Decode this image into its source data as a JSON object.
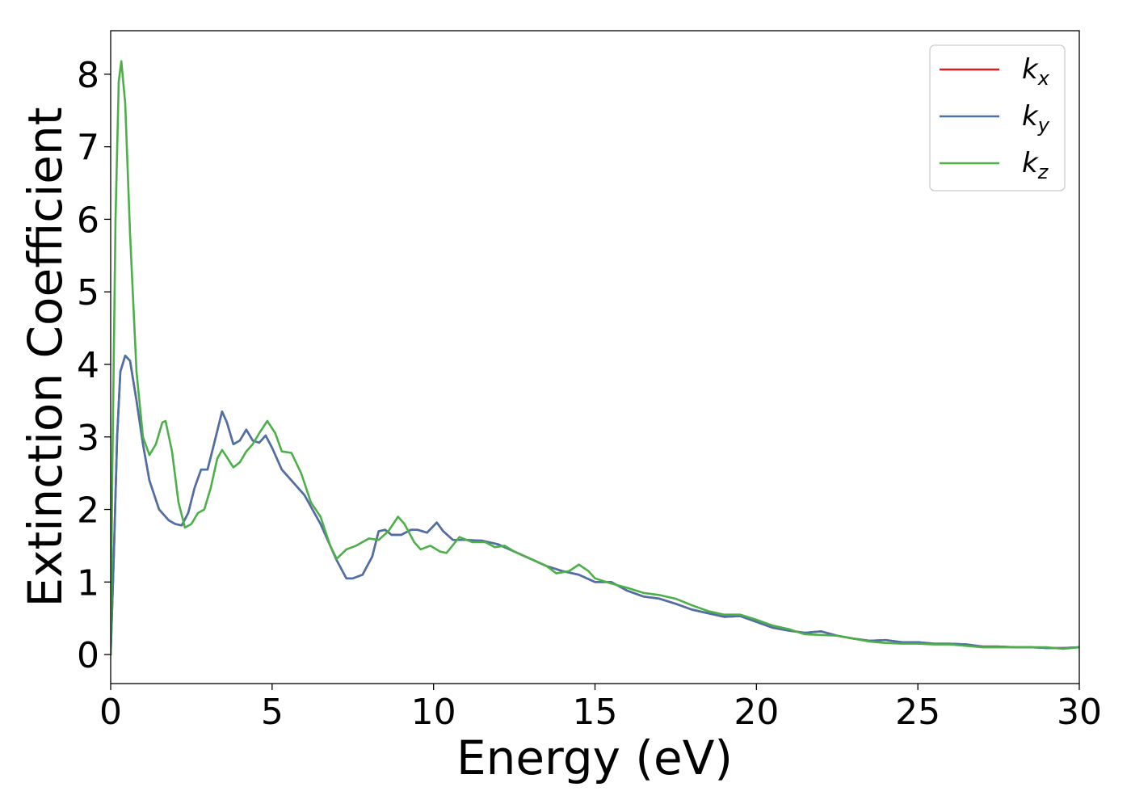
{
  "chart_data": {
    "type": "line",
    "xlabel": "Energy (eV)",
    "ylabel": "Extinction Coefficient",
    "xlim": [
      0,
      30
    ],
    "ylim": [
      -0.4,
      8.6
    ],
    "xticks": [
      0,
      5,
      10,
      15,
      20,
      25,
      30
    ],
    "yticks": [
      0,
      1,
      2,
      3,
      4,
      5,
      6,
      7,
      8
    ],
    "grid": false,
    "legend": "top-right",
    "series": [
      {
        "name": "k",
        "sub": "x",
        "color": "#e41a1c",
        "points": [
          [
            0,
            0
          ],
          [
            0.1,
            1.4
          ],
          [
            0.2,
            3.0
          ],
          [
            0.3,
            3.9
          ],
          [
            0.45,
            4.12
          ],
          [
            0.6,
            4.05
          ],
          [
            0.8,
            3.5
          ],
          [
            1.0,
            2.9
          ],
          [
            1.2,
            2.4
          ],
          [
            1.5,
            2.0
          ],
          [
            1.8,
            1.85
          ],
          [
            2.0,
            1.8
          ],
          [
            2.2,
            1.78
          ],
          [
            2.4,
            1.95
          ],
          [
            2.6,
            2.3
          ],
          [
            2.8,
            2.55
          ],
          [
            3.0,
            2.55
          ],
          [
            3.2,
            2.9
          ],
          [
            3.45,
            3.35
          ],
          [
            3.6,
            3.2
          ],
          [
            3.8,
            2.9
          ],
          [
            4.0,
            2.95
          ],
          [
            4.2,
            3.1
          ],
          [
            4.4,
            2.95
          ],
          [
            4.6,
            2.92
          ],
          [
            4.8,
            3.02
          ],
          [
            5.0,
            2.85
          ],
          [
            5.3,
            2.55
          ],
          [
            5.6,
            2.4
          ],
          [
            6.0,
            2.2
          ],
          [
            6.5,
            1.8
          ],
          [
            7.0,
            1.3
          ],
          [
            7.3,
            1.05
          ],
          [
            7.5,
            1.05
          ],
          [
            7.8,
            1.1
          ],
          [
            8.1,
            1.35
          ],
          [
            8.3,
            1.7
          ],
          [
            8.5,
            1.72
          ],
          [
            8.7,
            1.65
          ],
          [
            9.0,
            1.65
          ],
          [
            9.3,
            1.72
          ],
          [
            9.5,
            1.72
          ],
          [
            9.8,
            1.68
          ],
          [
            10.1,
            1.82
          ],
          [
            10.3,
            1.7
          ],
          [
            10.6,
            1.58
          ],
          [
            11.0,
            1.58
          ],
          [
            11.5,
            1.57
          ],
          [
            12.0,
            1.52
          ],
          [
            12.5,
            1.42
          ],
          [
            13.0,
            1.32
          ],
          [
            13.5,
            1.22
          ],
          [
            14.0,
            1.15
          ],
          [
            14.5,
            1.1
          ],
          [
            15.0,
            1.0
          ],
          [
            15.5,
            1.0
          ],
          [
            16.0,
            0.88
          ],
          [
            16.5,
            0.8
          ],
          [
            17.0,
            0.77
          ],
          [
            17.5,
            0.7
          ],
          [
            18.0,
            0.62
          ],
          [
            18.5,
            0.57
          ],
          [
            19.0,
            0.52
          ],
          [
            19.5,
            0.53
          ],
          [
            20.0,
            0.45
          ],
          [
            20.5,
            0.37
          ],
          [
            21.0,
            0.33
          ],
          [
            21.5,
            0.3
          ],
          [
            22.0,
            0.32
          ],
          [
            22.5,
            0.26
          ],
          [
            23.0,
            0.22
          ],
          [
            23.5,
            0.19
          ],
          [
            24.0,
            0.2
          ],
          [
            24.5,
            0.17
          ],
          [
            25.0,
            0.17
          ],
          [
            25.5,
            0.15
          ],
          [
            26.0,
            0.15
          ],
          [
            26.5,
            0.14
          ],
          [
            27.0,
            0.11
          ],
          [
            27.5,
            0.11
          ],
          [
            28.0,
            0.1
          ],
          [
            28.5,
            0.1
          ],
          [
            29.0,
            0.09
          ],
          [
            29.5,
            0.09
          ],
          [
            30.0,
            0.1
          ]
        ]
      },
      {
        "name": "k",
        "sub": "y",
        "color": "#4a72a8",
        "points": [
          [
            0,
            0
          ],
          [
            0.1,
            1.4
          ],
          [
            0.2,
            3.0
          ],
          [
            0.3,
            3.9
          ],
          [
            0.45,
            4.12
          ],
          [
            0.6,
            4.05
          ],
          [
            0.8,
            3.5
          ],
          [
            1.0,
            2.9
          ],
          [
            1.2,
            2.4
          ],
          [
            1.5,
            2.0
          ],
          [
            1.8,
            1.85
          ],
          [
            2.0,
            1.8
          ],
          [
            2.2,
            1.78
          ],
          [
            2.4,
            1.95
          ],
          [
            2.6,
            2.3
          ],
          [
            2.8,
            2.55
          ],
          [
            3.0,
            2.55
          ],
          [
            3.2,
            2.9
          ],
          [
            3.45,
            3.35
          ],
          [
            3.6,
            3.2
          ],
          [
            3.8,
            2.9
          ],
          [
            4.0,
            2.95
          ],
          [
            4.2,
            3.1
          ],
          [
            4.4,
            2.95
          ],
          [
            4.6,
            2.92
          ],
          [
            4.8,
            3.02
          ],
          [
            5.0,
            2.85
          ],
          [
            5.3,
            2.55
          ],
          [
            5.6,
            2.4
          ],
          [
            6.0,
            2.2
          ],
          [
            6.5,
            1.8
          ],
          [
            7.0,
            1.3
          ],
          [
            7.3,
            1.05
          ],
          [
            7.5,
            1.05
          ],
          [
            7.8,
            1.1
          ],
          [
            8.1,
            1.35
          ],
          [
            8.3,
            1.7
          ],
          [
            8.5,
            1.72
          ],
          [
            8.7,
            1.65
          ],
          [
            9.0,
            1.65
          ],
          [
            9.3,
            1.72
          ],
          [
            9.5,
            1.72
          ],
          [
            9.8,
            1.68
          ],
          [
            10.1,
            1.82
          ],
          [
            10.3,
            1.7
          ],
          [
            10.6,
            1.58
          ],
          [
            11.0,
            1.58
          ],
          [
            11.5,
            1.57
          ],
          [
            12.0,
            1.52
          ],
          [
            12.5,
            1.42
          ],
          [
            13.0,
            1.32
          ],
          [
            13.5,
            1.22
          ],
          [
            14.0,
            1.15
          ],
          [
            14.5,
            1.1
          ],
          [
            15.0,
            1.0
          ],
          [
            15.5,
            1.0
          ],
          [
            16.0,
            0.88
          ],
          [
            16.5,
            0.8
          ],
          [
            17.0,
            0.77
          ],
          [
            17.5,
            0.7
          ],
          [
            18.0,
            0.62
          ],
          [
            18.5,
            0.57
          ],
          [
            19.0,
            0.52
          ],
          [
            19.5,
            0.53
          ],
          [
            20.0,
            0.45
          ],
          [
            20.5,
            0.37
          ],
          [
            21.0,
            0.33
          ],
          [
            21.5,
            0.3
          ],
          [
            22.0,
            0.32
          ],
          [
            22.5,
            0.26
          ],
          [
            23.0,
            0.22
          ],
          [
            23.5,
            0.19
          ],
          [
            24.0,
            0.2
          ],
          [
            24.5,
            0.17
          ],
          [
            25.0,
            0.17
          ],
          [
            25.5,
            0.15
          ],
          [
            26.0,
            0.15
          ],
          [
            26.5,
            0.14
          ],
          [
            27.0,
            0.11
          ],
          [
            27.5,
            0.11
          ],
          [
            28.0,
            0.1
          ],
          [
            28.5,
            0.1
          ],
          [
            29.0,
            0.09
          ],
          [
            29.5,
            0.09
          ],
          [
            30.0,
            0.1
          ]
        ]
      },
      {
        "name": "k",
        "sub": "z",
        "color": "#4daf4a",
        "points": [
          [
            0,
            0
          ],
          [
            0.05,
            2.5
          ],
          [
            0.15,
            6.0
          ],
          [
            0.25,
            7.9
          ],
          [
            0.33,
            8.18
          ],
          [
            0.45,
            7.6
          ],
          [
            0.6,
            5.8
          ],
          [
            0.8,
            3.9
          ],
          [
            1.0,
            3.0
          ],
          [
            1.2,
            2.75
          ],
          [
            1.4,
            2.9
          ],
          [
            1.6,
            3.2
          ],
          [
            1.7,
            3.22
          ],
          [
            1.9,
            2.8
          ],
          [
            2.1,
            2.1
          ],
          [
            2.3,
            1.75
          ],
          [
            2.5,
            1.8
          ],
          [
            2.7,
            1.95
          ],
          [
            2.9,
            2.0
          ],
          [
            3.1,
            2.3
          ],
          [
            3.3,
            2.7
          ],
          [
            3.45,
            2.82
          ],
          [
            3.6,
            2.72
          ],
          [
            3.8,
            2.58
          ],
          [
            4.0,
            2.65
          ],
          [
            4.2,
            2.8
          ],
          [
            4.4,
            2.9
          ],
          [
            4.6,
            3.05
          ],
          [
            4.85,
            3.22
          ],
          [
            5.1,
            3.05
          ],
          [
            5.3,
            2.8
          ],
          [
            5.6,
            2.78
          ],
          [
            5.9,
            2.5
          ],
          [
            6.2,
            2.1
          ],
          [
            6.5,
            1.9
          ],
          [
            6.8,
            1.5
          ],
          [
            7.0,
            1.32
          ],
          [
            7.3,
            1.45
          ],
          [
            7.6,
            1.5
          ],
          [
            8.0,
            1.6
          ],
          [
            8.3,
            1.58
          ],
          [
            8.6,
            1.7
          ],
          [
            8.9,
            1.9
          ],
          [
            9.1,
            1.8
          ],
          [
            9.4,
            1.55
          ],
          [
            9.6,
            1.45
          ],
          [
            9.9,
            1.5
          ],
          [
            10.2,
            1.42
          ],
          [
            10.4,
            1.4
          ],
          [
            10.8,
            1.62
          ],
          [
            11.2,
            1.55
          ],
          [
            11.6,
            1.55
          ],
          [
            11.9,
            1.48
          ],
          [
            12.2,
            1.5
          ],
          [
            12.5,
            1.42
          ],
          [
            13.0,
            1.32
          ],
          [
            13.5,
            1.22
          ],
          [
            13.8,
            1.12
          ],
          [
            14.2,
            1.15
          ],
          [
            14.5,
            1.24
          ],
          [
            14.8,
            1.15
          ],
          [
            15.0,
            1.05
          ],
          [
            15.5,
            0.98
          ],
          [
            16.0,
            0.92
          ],
          [
            16.5,
            0.85
          ],
          [
            17.0,
            0.82
          ],
          [
            17.5,
            0.77
          ],
          [
            18.0,
            0.68
          ],
          [
            18.5,
            0.6
          ],
          [
            19.0,
            0.55
          ],
          [
            19.5,
            0.55
          ],
          [
            20.0,
            0.48
          ],
          [
            20.5,
            0.4
          ],
          [
            21.0,
            0.35
          ],
          [
            21.5,
            0.28
          ],
          [
            22.0,
            0.27
          ],
          [
            22.5,
            0.26
          ],
          [
            23.0,
            0.22
          ],
          [
            23.5,
            0.18
          ],
          [
            24.0,
            0.16
          ],
          [
            24.5,
            0.15
          ],
          [
            25.0,
            0.15
          ],
          [
            25.5,
            0.14
          ],
          [
            26.0,
            0.14
          ],
          [
            26.5,
            0.12
          ],
          [
            27.0,
            0.1
          ],
          [
            27.5,
            0.1
          ],
          [
            28.0,
            0.1
          ],
          [
            28.5,
            0.1
          ],
          [
            29.0,
            0.1
          ],
          [
            29.5,
            0.08
          ],
          [
            30.0,
            0.1
          ]
        ]
      }
    ]
  }
}
